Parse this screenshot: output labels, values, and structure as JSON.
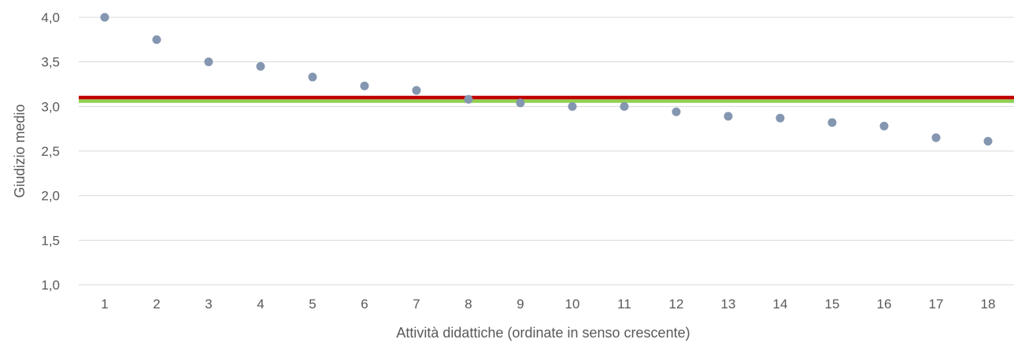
{
  "chart_data": {
    "type": "scatter",
    "title": "",
    "xlabel": "Attività didattiche (ordinate in senso crescente)",
    "ylabel": "Giudizio medio",
    "x": [
      1,
      2,
      3,
      4,
      5,
      6,
      7,
      8,
      9,
      10,
      11,
      12,
      13,
      14,
      15,
      16,
      17,
      18
    ],
    "y": [
      4.0,
      3.75,
      3.5,
      3.45,
      3.33,
      3.23,
      3.18,
      3.08,
      3.04,
      3.0,
      3.0,
      2.94,
      2.89,
      2.87,
      2.82,
      2.78,
      2.65,
      2.61
    ],
    "xlim": [
      0.5,
      18.5
    ],
    "ylim": [
      1.0,
      4.0
    ],
    "y_ticks": [
      "1,0",
      "1,5",
      "2,0",
      "2,5",
      "3,0",
      "3,5",
      "4,0"
    ],
    "y_tick_values": [
      1.0,
      1.5,
      2.0,
      2.5,
      3.0,
      3.5,
      4.0
    ],
    "x_ticks": [
      "1",
      "2",
      "3",
      "4",
      "5",
      "6",
      "7",
      "8",
      "9",
      "10",
      "11",
      "12",
      "13",
      "14",
      "15",
      "16",
      "17",
      "18"
    ],
    "reference_lines": [
      {
        "y": 3.1,
        "color": "#c00000"
      },
      {
        "y": 3.06,
        "color": "#92d050"
      }
    ],
    "marker_color": "#8496b0",
    "grid": true
  }
}
